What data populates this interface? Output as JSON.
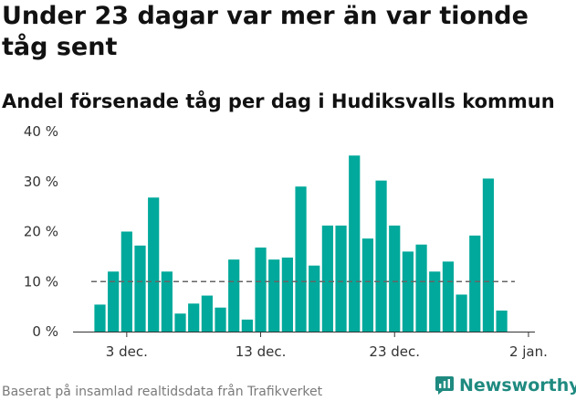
{
  "title": "Under 23 dagar var mer än var tionde tåg sent",
  "subtitle": "Andel försenade tåg per dag i Hudiksvalls kommun",
  "source": "Baserat på insamlad realtidsdata från Trafikverket",
  "brand": "Newsworthy",
  "colors": {
    "bar": "#00a99b",
    "reference": "#666666",
    "brand": "#1f8a80"
  },
  "chart_data": {
    "type": "bar",
    "title": "Under 23 dagar var mer än var tionde tåg sent",
    "subtitle": "Andel försenade tåg per dag i Hudiksvalls kommun",
    "xlabel": "",
    "ylabel": "",
    "ylim": [
      0,
      40
    ],
    "yticks": [
      0,
      10,
      20,
      30,
      40
    ],
    "ytick_labels": [
      "0 %",
      "10 %",
      "20 %",
      "30 %",
      "40 %"
    ],
    "xticks": [
      {
        "label": "3 dec.",
        "index": 2
      },
      {
        "label": "13 dec.",
        "index": 12
      },
      {
        "label": "23 dec.",
        "index": 22
      },
      {
        "label": "2 jan.",
        "index": 32
      }
    ],
    "categories": [
      "2019-12-01",
      "2019-12-02",
      "2019-12-03",
      "2019-12-04",
      "2019-12-05",
      "2019-12-06",
      "2019-12-07",
      "2019-12-08",
      "2019-12-09",
      "2019-12-10",
      "2019-12-11",
      "2019-12-12",
      "2019-12-13",
      "2019-12-14",
      "2019-12-15",
      "2019-12-16",
      "2019-12-17",
      "2019-12-18",
      "2019-12-19",
      "2019-12-20",
      "2019-12-21",
      "2019-12-22",
      "2019-12-23",
      "2019-12-24",
      "2019-12-25",
      "2019-12-26",
      "2019-12-27",
      "2019-12-28",
      "2019-12-29",
      "2019-12-30",
      "2019-12-31"
    ],
    "values": [
      5.4,
      12.0,
      20.0,
      17.2,
      26.8,
      12.0,
      3.6,
      5.6,
      7.2,
      4.8,
      14.4,
      2.4,
      16.8,
      14.4,
      14.8,
      29.0,
      13.2,
      21.2,
      21.2,
      35.2,
      18.6,
      30.2,
      21.2,
      16.0,
      17.4,
      12.0,
      14.0,
      7.4,
      19.2,
      30.6,
      4.2
    ],
    "reference_line": 10,
    "grid": false,
    "legend": "none"
  }
}
